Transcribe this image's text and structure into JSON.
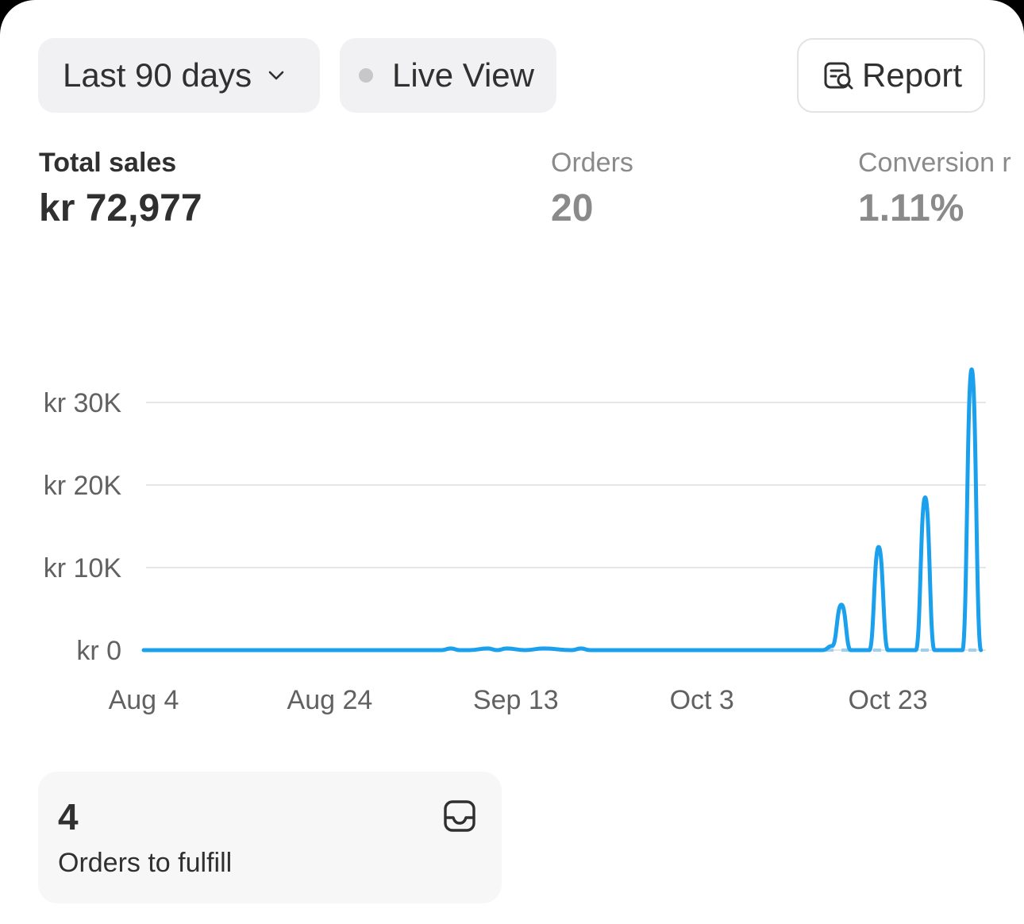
{
  "toolbar": {
    "date_range_label": "Last 90 days",
    "live_view_label": "Live View",
    "report_label": "Report"
  },
  "metrics": [
    {
      "label": "Total sales",
      "value": "kr 72,977",
      "active": true
    },
    {
      "label": "Orders",
      "value": "20",
      "active": false
    },
    {
      "label": "Conversion r",
      "value": "1.11%",
      "active": false
    }
  ],
  "colors": {
    "line": "#1aa0ec",
    "grid": "#e6e6e6",
    "text_primary": "#303030",
    "text_secondary": "#8a8a8a"
  },
  "chart_data": {
    "type": "line",
    "y_tick_labels": [
      "kr 0",
      "kr 10K",
      "kr 20K",
      "kr 30K"
    ],
    "y_ticks": [
      0,
      10000,
      20000,
      30000
    ],
    "ylim": [
      0,
      30000
    ],
    "x_tick_labels": [
      "Aug 4",
      "Aug 24",
      "Sep 13",
      "Oct 3",
      "Oct 23"
    ],
    "x_tick_days": [
      0,
      20,
      40,
      60,
      80
    ],
    "x_range_days": [
      0,
      90
    ],
    "grid": true,
    "series": [
      {
        "x": [
          0,
          32,
          33,
          34,
          35,
          37,
          38,
          39,
          41,
          43,
          46,
          47,
          48,
          72,
          73,
          74,
          75,
          76,
          78,
          79,
          80,
          83,
          84,
          85,
          88,
          89,
          90
        ],
        "values": [
          0,
          0,
          200,
          0,
          0,
          200,
          0,
          200,
          0,
          200,
          0,
          200,
          0,
          0,
          0,
          500,
          5500,
          0,
          0,
          12500,
          0,
          0,
          18500,
          0,
          0,
          34000,
          0
        ]
      }
    ]
  },
  "fulfill": {
    "count": "4",
    "label": "Orders to fulfill"
  }
}
